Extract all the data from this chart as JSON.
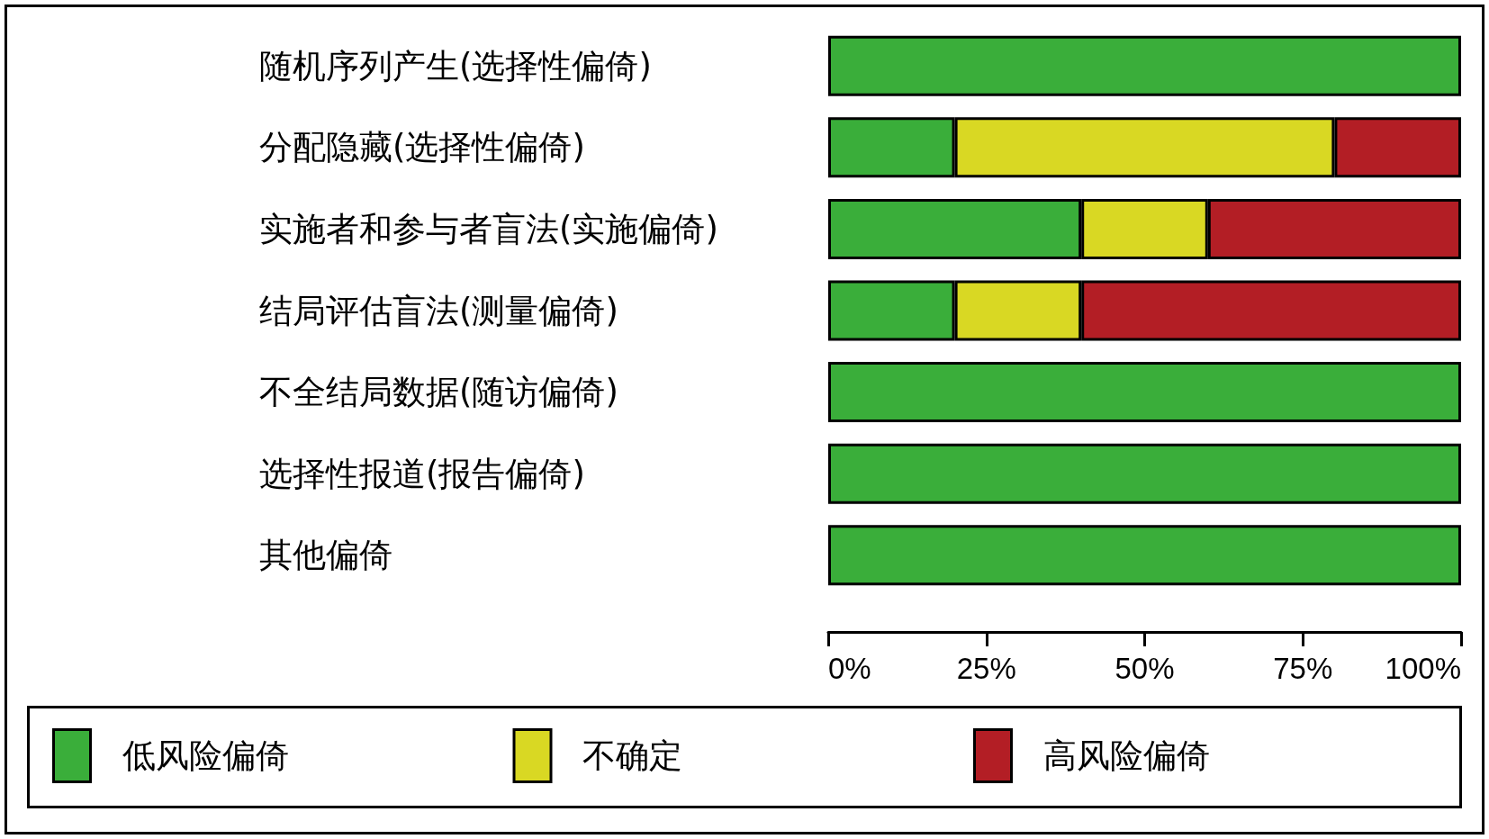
{
  "chart_data": {
    "type": "bar",
    "orientation": "horizontal",
    "stacked": true,
    "categories": [
      "随机序列产生(选择性偏倚)",
      "分配隐藏(选择性偏倚)",
      "实施者和参与者盲法(实施偏倚)",
      "结局评估盲法(测量偏倚)",
      "不全结局数据(随访偏倚)",
      "选择性报道(报告偏倚)",
      "其他偏倚"
    ],
    "series": [
      {
        "name": "低风险偏倚",
        "color": "#3aae3a",
        "values": [
          100,
          20,
          40,
          20,
          100,
          100,
          100
        ]
      },
      {
        "name": "不确定",
        "color": "#d9d823",
        "values": [
          0,
          60,
          20,
          20,
          0,
          0,
          0
        ]
      },
      {
        "name": "高风险偏倚",
        "color": "#b31e25",
        "values": [
          0,
          20,
          40,
          60,
          0,
          0,
          0
        ]
      }
    ],
    "xlim": [
      0,
      100
    ],
    "xticks": [
      {
        "value": 0,
        "label": "0%"
      },
      {
        "value": 25,
        "label": "25%"
      },
      {
        "value": 50,
        "label": "50%"
      },
      {
        "value": 75,
        "label": "75%"
      },
      {
        "value": 100,
        "label": "100%"
      }
    ],
    "legend": "bottom",
    "grid": false
  }
}
